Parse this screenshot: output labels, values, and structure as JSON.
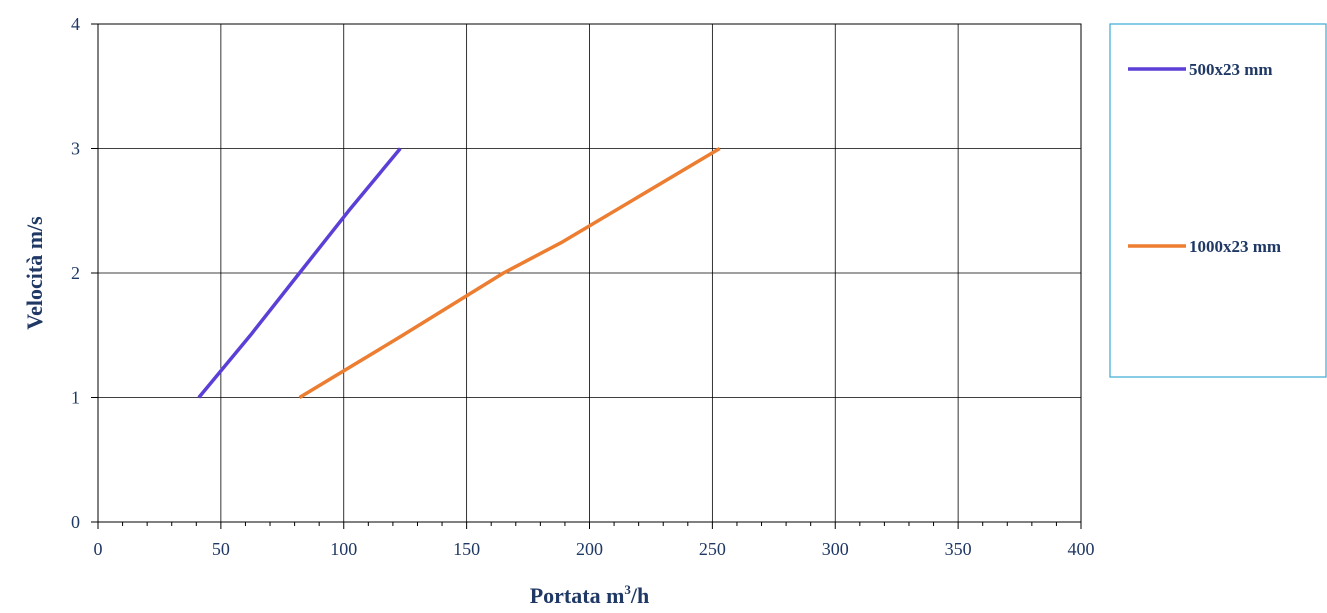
{
  "chart_data": {
    "type": "line",
    "xlabel": "Portata m",
    "xlabel_sup": "3",
    "xlabel_suffix": "/h",
    "ylabel": "Velocità m/s",
    "xlim": [
      0,
      400
    ],
    "ylim": [
      0,
      4
    ],
    "x_ticks": [
      0,
      50,
      100,
      150,
      200,
      250,
      300,
      350,
      400
    ],
    "y_ticks": [
      0,
      1,
      2,
      3,
      4
    ],
    "x_minor_step": 10,
    "grid": true,
    "legend_position": "right",
    "series": [
      {
        "name": "500x23 mm",
        "color": "#5b3fd6",
        "points": [
          [
            41,
            1
          ],
          [
            62,
            1.5
          ],
          [
            82,
            2
          ],
          [
            102,
            2.5
          ],
          [
            123,
            3
          ]
        ]
      },
      {
        "name": "1000x23 mm",
        "color": "#ed7d31",
        "points": [
          [
            82,
            1
          ],
          [
            124,
            1.5
          ],
          [
            165,
            2
          ],
          [
            189,
            2.25
          ],
          [
            253,
            3
          ]
        ]
      }
    ]
  }
}
